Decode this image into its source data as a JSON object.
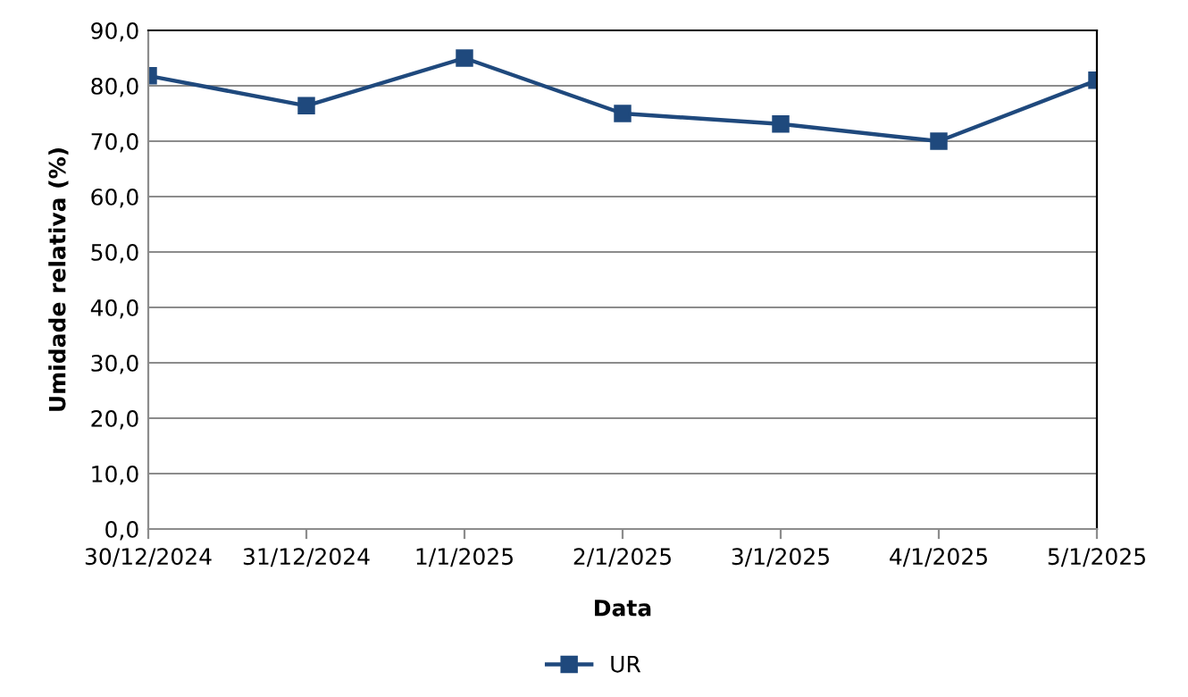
{
  "chart_data": {
    "type": "line",
    "xlabel": "Data",
    "ylabel": "Umidade relativa (%)",
    "categories": [
      "30/12/2024",
      "31/12/2024",
      "1/1/2025",
      "2/1/2025",
      "3/1/2025",
      "4/1/2025",
      "5/1/2025"
    ],
    "series": [
      {
        "name": "UR",
        "color": "#1f497d",
        "values": [
          81.8,
          76.4,
          85.0,
          75.0,
          73.1,
          70.0,
          81.0
        ]
      }
    ],
    "ylim": [
      0,
      90
    ],
    "yticks": [
      {
        "value": 0,
        "label": "0,0"
      },
      {
        "value": 10,
        "label": "10,0"
      },
      {
        "value": 20,
        "label": "20,0"
      },
      {
        "value": 30,
        "label": "30,0"
      },
      {
        "value": 40,
        "label": "40,0"
      },
      {
        "value": 50,
        "label": "50,0"
      },
      {
        "value": 60,
        "label": "60,0"
      },
      {
        "value": 70,
        "label": "70,0"
      },
      {
        "value": 80,
        "label": "80,0"
      },
      {
        "value": 90,
        "label": "90,0"
      }
    ],
    "grid": "y",
    "legend": "bottom",
    "marker": "square",
    "line_style": "solid"
  }
}
